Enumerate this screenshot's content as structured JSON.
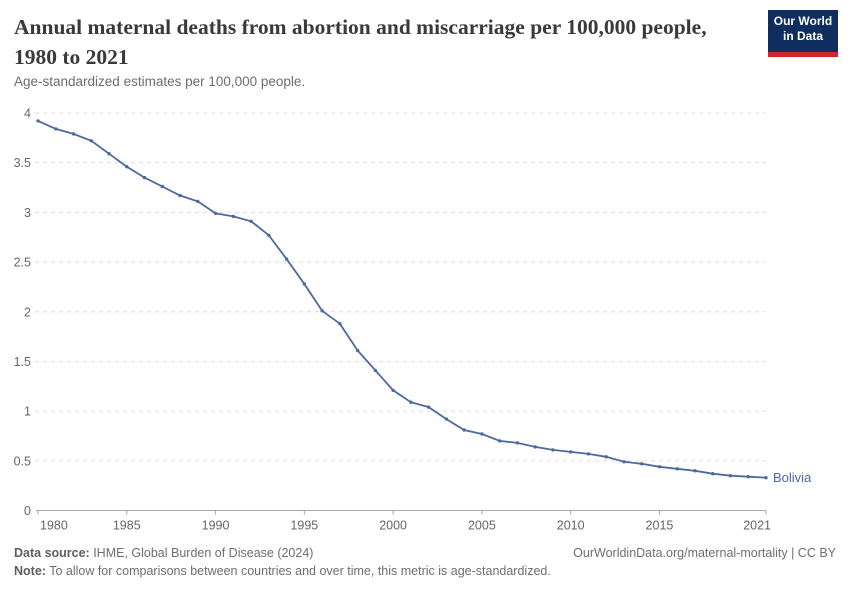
{
  "header": {
    "title": "Annual maternal deaths from abortion and miscarriage per 100,000 people, 1980 to 2021",
    "subtitle": "Age-standardized estimates per 100,000 people.",
    "logo": {
      "line1": "Our World",
      "line2": "in Data"
    }
  },
  "chart_data": {
    "type": "line",
    "title": "Annual maternal deaths from abortion and miscarriage per 100,000 people, 1980 to 2021",
    "xlabel": "",
    "ylabel": "",
    "xlim": [
      1980,
      2021
    ],
    "ylim": [
      0,
      4
    ],
    "x_ticks": [
      1980,
      1985,
      1990,
      1995,
      2000,
      2005,
      2010,
      2015,
      2021
    ],
    "y_ticks": [
      0,
      0.5,
      1,
      1.5,
      2,
      2.5,
      3,
      3.5,
      4
    ],
    "grid": "horizontal-dashed",
    "legend_position": "end-of-line",
    "series": [
      {
        "name": "Bolivia",
        "color": "#4c6a9c",
        "x": [
          1980,
          1981,
          1982,
          1983,
          1984,
          1985,
          1986,
          1987,
          1988,
          1989,
          1990,
          1991,
          1992,
          1993,
          1994,
          1995,
          1996,
          1997,
          1998,
          1999,
          2000,
          2001,
          2002,
          2003,
          2004,
          2005,
          2006,
          2007,
          2008,
          2009,
          2010,
          2011,
          2012,
          2013,
          2014,
          2015,
          2016,
          2017,
          2018,
          2019,
          2020,
          2021
        ],
        "values": [
          3.92,
          3.84,
          3.79,
          3.72,
          3.59,
          3.46,
          3.35,
          3.26,
          3.17,
          3.11,
          2.99,
          2.96,
          2.91,
          2.77,
          2.53,
          2.28,
          2.01,
          1.88,
          1.61,
          1.41,
          1.21,
          1.09,
          1.04,
          0.92,
          0.81,
          0.77,
          0.7,
          0.68,
          0.64,
          0.61,
          0.59,
          0.57,
          0.54,
          0.49,
          0.47,
          0.44,
          0.42,
          0.4,
          0.37,
          0.35,
          0.34,
          0.33
        ]
      }
    ],
    "end_label": "Bolivia"
  },
  "footer": {
    "datasource_label": "Data source:",
    "datasource_value": " IHME, Global Burden of Disease (2024)",
    "link": "OurWorldinData.org/maternal-mortality | CC BY",
    "note_label": "Note:",
    "note_value": " To allow for comparisons between countries and over time, this metric is age-standardized."
  },
  "colors": {
    "series_blue": "#4c6a9c",
    "logo_navy": "#0d2e5e",
    "logo_red": "#d0262b",
    "gridline": "#dcdcdc",
    "axis": "#a6a6a6",
    "tick_label": "#666666",
    "title_text": "#3a3a3a",
    "subtitle_text": "#6d6d6d",
    "footer_text": "#6e6e6e"
  }
}
